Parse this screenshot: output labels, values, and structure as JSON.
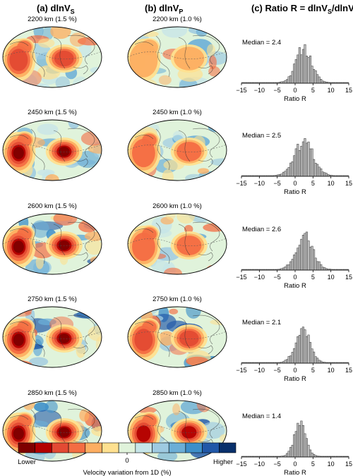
{
  "columns": [
    {
      "prefix": "(a) dlnV",
      "sub": "S",
      "mid": "",
      "sub2": ""
    },
    {
      "prefix": "(b) dlnV",
      "sub": "P",
      "mid": "",
      "sub2": ""
    },
    {
      "prefix": "(c) Ratio R = dlnV",
      "sub": "S",
      "mid": "/dlnV",
      "sub2": "P"
    }
  ],
  "rows": [
    {
      "vs_label": "2200 km (1.5 %)",
      "vp_label": "2200 km (1.0 %)",
      "median": "Median = 2.4"
    },
    {
      "vs_label": "2450 km (1.5 %)",
      "vp_label": "2450 km (1.0 %)",
      "median": "Median = 2.5"
    },
    {
      "vs_label": "2600 km (1.5 %)",
      "vp_label": "2600 km (1.0 %)",
      "median": "Median = 2.6"
    },
    {
      "vs_label": "2750 km (1.5 %)",
      "vp_label": "2750 km (1.0 %)",
      "median": "Median = 2.1"
    },
    {
      "vs_label": "2850 km (1.5 %)",
      "vp_label": "2850 km (1.0 %)",
      "median": "Median = 1.4"
    }
  ],
  "colorbar": {
    "colors": [
      "#7f0000",
      "#b30000",
      "#e34a33",
      "#f46d43",
      "#fdae61",
      "#fee090",
      "#e0f3db",
      "#c6e5e8",
      "#9ecae1",
      "#6baed6",
      "#3d8fc9",
      "#2158a8",
      "#08306b"
    ],
    "tick_center": "0",
    "lower_label": "Lower",
    "higher_label": "Higher",
    "title": "Velocity variation from 1D (%)"
  },
  "chart_data": [
    {
      "type": "bar",
      "xlabel": "Ratio R",
      "xlim": [
        -15,
        15
      ],
      "xticks": [
        -15,
        -10,
        -5,
        0,
        5,
        10,
        15
      ],
      "bin_width": 0.5,
      "panels": [
        {
          "median": 2.4,
          "spread": 2.2
        },
        {
          "median": 2.5,
          "spread": 2.6
        },
        {
          "median": 2.6,
          "spread": 2.3
        },
        {
          "median": 2.1,
          "spread": 2.0
        },
        {
          "median": 1.4,
          "spread": 1.6
        }
      ]
    }
  ]
}
